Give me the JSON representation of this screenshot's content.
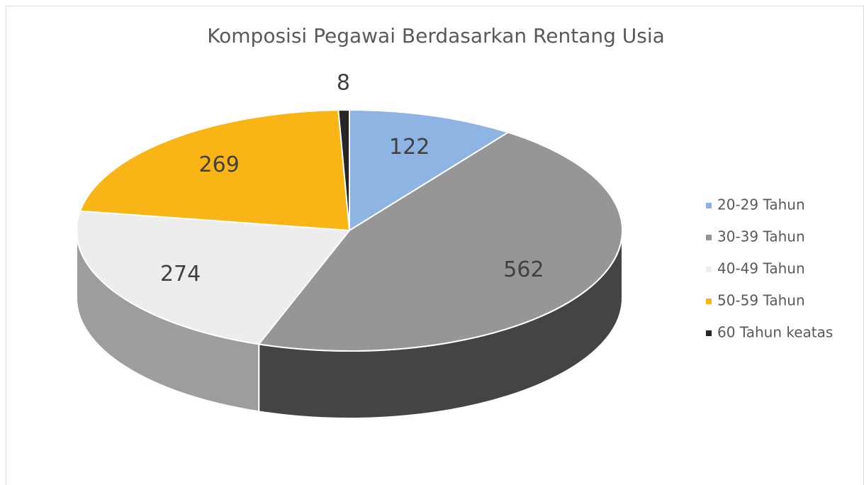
{
  "chart_data": {
    "type": "pie",
    "title": "Komposisi Pegawai Berdasarkan Rentang Usia",
    "categories": [
      "20-29 Tahun",
      "30-39 Tahun",
      "40-49 Tahun",
      "50-59 Tahun",
      "60 Tahun keatas"
    ],
    "values": [
      122,
      562,
      274,
      269,
      8
    ],
    "colors": [
      "#8eb4e3",
      "#969696",
      "#ededed",
      "#f8b515",
      "#262626"
    ],
    "legend": "right"
  }
}
